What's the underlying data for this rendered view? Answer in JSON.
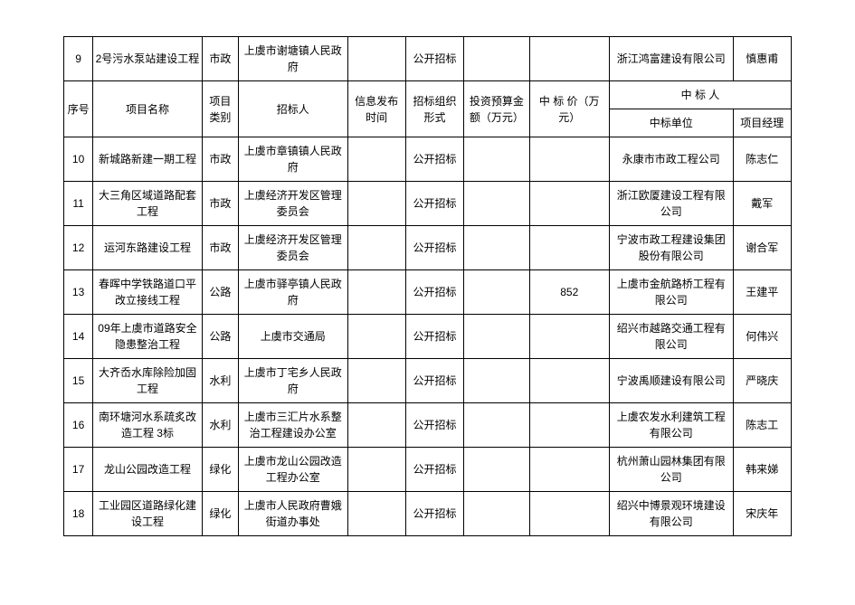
{
  "header": {
    "seq": "序号",
    "project_name": "项目名称",
    "category": "项目类别",
    "tenderer": "招标人",
    "publish_time": "信息发布时间",
    "method": "招标组织形式",
    "budget": "投资预算金额（万元）",
    "bid_price": "中 标 价（万元）",
    "winner_group": "中     标     人",
    "winner_unit": "中标单位",
    "manager": "项目经理"
  },
  "rows": [
    {
      "seq": "9",
      "name": "2号污水泵站建设工程",
      "cat": "市政",
      "tenderer": "上虞市谢塘镇人民政府",
      "time": "",
      "method": "公开招标",
      "budget": "",
      "price": "",
      "unit": "浙江鸿富建设有限公司",
      "mgr": "慎惠甫"
    },
    {
      "seq": "10",
      "name": "新城路新建一期工程",
      "cat": "市政",
      "tenderer": "上虞市章镇镇人民政府",
      "time": "",
      "method": "公开招标",
      "budget": "",
      "price": "",
      "unit": "永康市市政工程公司",
      "mgr": "陈志仁"
    },
    {
      "seq": "11",
      "name": "大三角区域道路配套工程",
      "cat": "市政",
      "tenderer": "上虞经济开发区管理委员会",
      "time": "",
      "method": "公开招标",
      "budget": "",
      "price": "",
      "unit": "浙江欧厦建设工程有限公司",
      "mgr": "戴军"
    },
    {
      "seq": "12",
      "name": "运河东路建设工程",
      "cat": "市政",
      "tenderer": "上虞经济开发区管理委员会",
      "time": "",
      "method": "公开招标",
      "budget": "",
      "price": "",
      "unit": "宁波市政工程建设集团股份有限公司",
      "mgr": "谢合军"
    },
    {
      "seq": "13",
      "name": "春晖中学铁路道口平改立接线工程",
      "cat": "公路",
      "tenderer": "上虞市驿亭镇人民政府",
      "time": "",
      "method": "公开招标",
      "budget": "",
      "price": "852",
      "unit": "上虞市金航路桥工程有限公司",
      "mgr": "王建平"
    },
    {
      "seq": "14",
      "name": "09年上虞市道路安全隐患整治工程",
      "cat": "公路",
      "tenderer": "上虞市交通局",
      "time": "",
      "method": "公开招标",
      "budget": "",
      "price": "",
      "unit": "绍兴市越路交通工程有限公司",
      "mgr": "何伟兴"
    },
    {
      "seq": "15",
      "name": "大齐岙水库除险加固工程",
      "cat": "水利",
      "tenderer": "上虞市丁宅乡人民政府",
      "time": "",
      "method": "公开招标",
      "budget": "",
      "price": "",
      "unit": "宁波禹顺建设有限公司",
      "mgr": "严晓庆"
    },
    {
      "seq": "16",
      "name": "南环塘河水系疏炙改造工程 3标",
      "cat": "水利",
      "tenderer": "上虞市三汇片水系整治工程建设办公室",
      "time": "",
      "method": "公开招标",
      "budget": "",
      "price": "",
      "unit": "上虞农发水利建筑工程有限公司",
      "mgr": "陈志工"
    },
    {
      "seq": "17",
      "name": "龙山公园改造工程",
      "cat": "绿化",
      "tenderer": "上虞市龙山公园改造工程办公室",
      "time": "",
      "method": "公开招标",
      "budget": "",
      "price": "",
      "unit": "杭州萧山园林集团有限公司",
      "mgr": "韩来娣"
    },
    {
      "seq": "18",
      "name": "工业园区道路绿化建设工程",
      "cat": "绿化",
      "tenderer": "上虞市人民政府曹娥街道办事处",
      "time": "",
      "method": "公开招标",
      "budget": "",
      "price": "",
      "unit": "绍兴中博景观环境建设有限公司",
      "mgr": "宋庆年"
    }
  ],
  "col_widths": {
    "seq": "4%",
    "name": "13%",
    "cat": "5%",
    "tenderer": "13%",
    "time": "8%",
    "method": "8%",
    "budget": "9%",
    "price": "10%",
    "unit": "15%",
    "mgr": "7%"
  }
}
